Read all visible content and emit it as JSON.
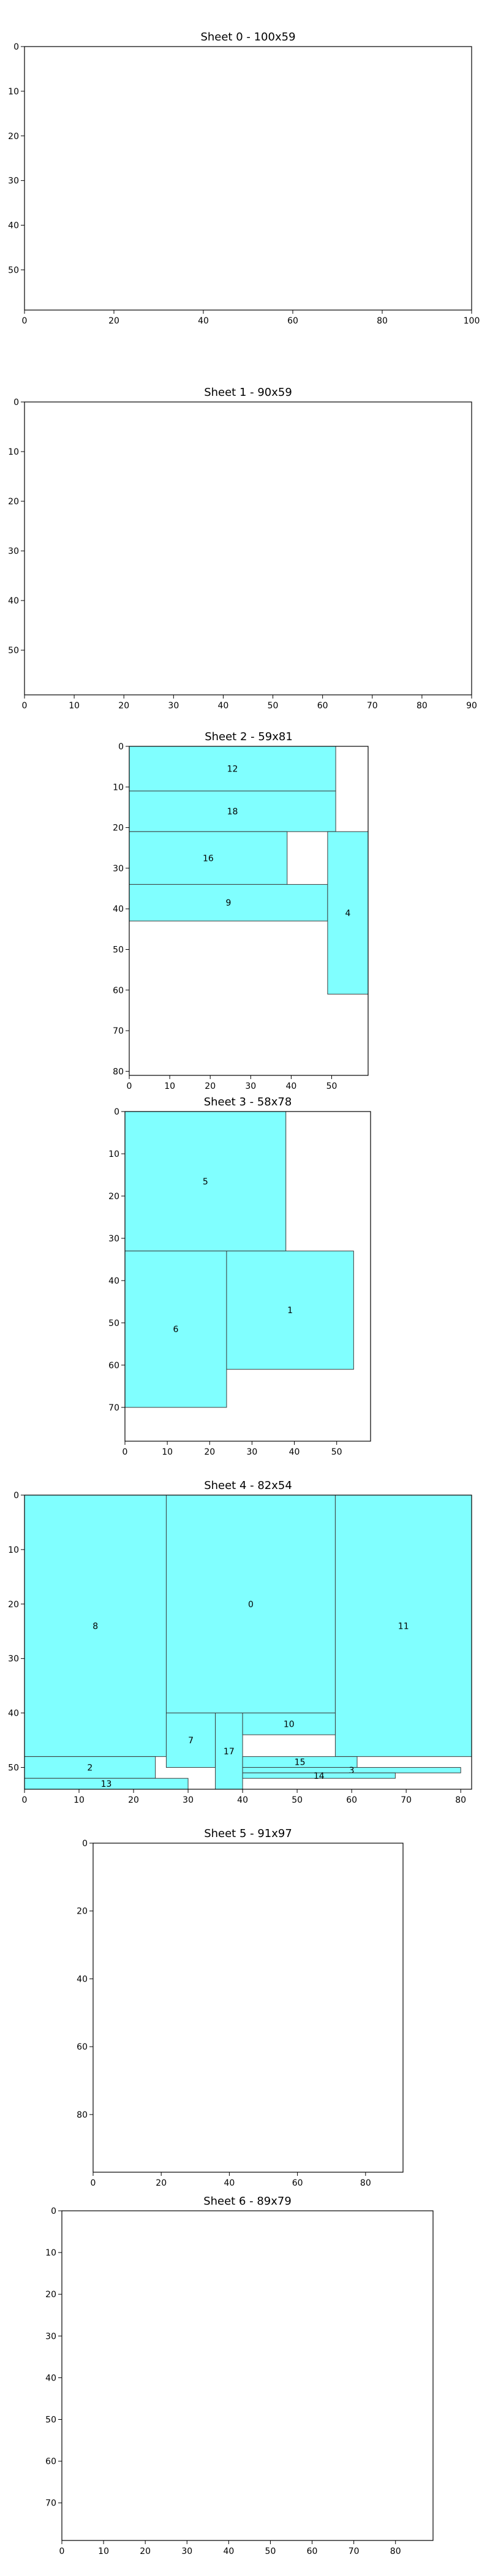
{
  "colors": {
    "fill": "#80ffff",
    "stroke": "#3b3b3b",
    "axis": "#000000"
  },
  "chart_data": [
    {
      "type": "rect-layout",
      "title": "Sheet 0 - 100x59",
      "width": 100,
      "height": 59,
      "xticks": [
        0,
        20,
        40,
        60,
        80,
        100
      ],
      "yticks": [
        0,
        10,
        20,
        30,
        40,
        50
      ],
      "pieces": []
    },
    {
      "type": "rect-layout",
      "title": "Sheet 1 - 90x59",
      "width": 90,
      "height": 59,
      "xticks": [
        0,
        10,
        20,
        30,
        40,
        50,
        60,
        70,
        80,
        90
      ],
      "yticks": [
        0,
        10,
        20,
        30,
        40,
        50
      ],
      "pieces": []
    },
    {
      "type": "rect-layout",
      "title": "Sheet 2 - 59x81",
      "width": 59,
      "height": 81,
      "xticks": [
        0,
        10,
        20,
        30,
        40,
        50
      ],
      "yticks": [
        0,
        10,
        20,
        30,
        40,
        50,
        60,
        70,
        80
      ],
      "pieces": [
        {
          "id": "12",
          "x": 0,
          "y": 0,
          "w": 51,
          "h": 11
        },
        {
          "id": "18",
          "x": 0,
          "y": 11,
          "w": 51,
          "h": 10
        },
        {
          "id": "16",
          "x": 0,
          "y": 21,
          "w": 39,
          "h": 13
        },
        {
          "id": "9",
          "x": 0,
          "y": 34,
          "w": 49,
          "h": 9
        },
        {
          "id": "4",
          "x": 49,
          "y": 21,
          "w": 10,
          "h": 40
        }
      ]
    },
    {
      "type": "rect-layout",
      "title": "Sheet 3 - 58x78",
      "width": 58,
      "height": 78,
      "xticks": [
        0,
        10,
        20,
        30,
        40,
        50
      ],
      "yticks": [
        0,
        10,
        20,
        30,
        40,
        50,
        60,
        70
      ],
      "pieces": [
        {
          "id": "5",
          "x": 0,
          "y": 0,
          "w": 38,
          "h": 33
        },
        {
          "id": "6",
          "x": 0,
          "y": 33,
          "w": 24,
          "h": 37
        },
        {
          "id": "1",
          "x": 24,
          "y": 33,
          "w": 30,
          "h": 28
        }
      ]
    },
    {
      "type": "rect-layout",
      "title": "Sheet 4 - 82x54",
      "width": 82,
      "height": 54,
      "xticks": [
        0,
        10,
        20,
        30,
        40,
        50,
        60,
        70,
        80
      ],
      "yticks": [
        0,
        10,
        20,
        30,
        40,
        50
      ],
      "pieces": [
        {
          "id": "8",
          "x": 0,
          "y": 0,
          "w": 26,
          "h": 48
        },
        {
          "id": "0",
          "x": 26,
          "y": 0,
          "w": 31,
          "h": 40
        },
        {
          "id": "11",
          "x": 57,
          "y": 0,
          "w": 25,
          "h": 48
        },
        {
          "id": "7",
          "x": 26,
          "y": 40,
          "w": 9,
          "h": 10
        },
        {
          "id": "17",
          "x": 35,
          "y": 40,
          "w": 5,
          "h": 14
        },
        {
          "id": "10",
          "x": 40,
          "y": 40,
          "w": 17,
          "h": 4
        },
        {
          "id": "2",
          "x": 0,
          "y": 48,
          "w": 24,
          "h": 4
        },
        {
          "id": "13",
          "x": 0,
          "y": 52,
          "w": 30,
          "h": 2
        },
        {
          "id": "15",
          "x": 40,
          "y": 48,
          "w": 21,
          "h": 2
        },
        {
          "id": "3",
          "x": 40,
          "y": 50,
          "w": 40,
          "h": 1
        },
        {
          "id": "14",
          "x": 40,
          "y": 51,
          "w": 28,
          "h": 1
        }
      ]
    },
    {
      "type": "rect-layout",
      "title": "Sheet 5 - 91x97",
      "width": 91,
      "height": 97,
      "xticks": [
        0,
        20,
        40,
        60,
        80
      ],
      "yticks": [
        0,
        20,
        40,
        60,
        80
      ],
      "pieces": []
    },
    {
      "type": "rect-layout",
      "title": "Sheet 6 - 89x79",
      "width": 89,
      "height": 79,
      "xticks": [
        0,
        10,
        20,
        30,
        40,
        50,
        60,
        70,
        80
      ],
      "yticks": [
        0,
        10,
        20,
        30,
        40,
        50,
        60,
        70
      ],
      "pieces": []
    }
  ]
}
